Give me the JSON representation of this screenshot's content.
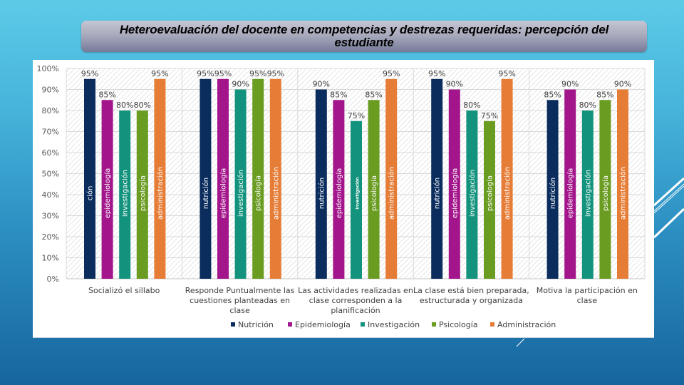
{
  "slide": {
    "title": "Heteroevaluación del docente en competencias y destrezas requeridas: percepción del estudiante"
  },
  "chart_data": {
    "type": "bar",
    "title": "Heteroevaluación del docente en competencias y destrezas requeridas: percepción del estudiante",
    "xlabel": "",
    "ylabel": "",
    "ylim": [
      0,
      100
    ],
    "y_unit": "%",
    "yticks": [
      "0%",
      "10%",
      "20%",
      "30%",
      "40%",
      "50%",
      "60%",
      "70%",
      "80%",
      "90%",
      "100%"
    ],
    "grid": true,
    "legend_position": "bottom",
    "categories": [
      [
        "Socializó el sillabo"
      ],
      [
        "Responde Puntualmente las",
        "cuestiones planteadas en",
        "clase"
      ],
      [
        "Las actividades realizadas en",
        "clase corresponden a la",
        "planificación"
      ],
      [
        "La clase está bien preparada,",
        "estructurada y organizada"
      ],
      [
        "Motiva la participación en",
        "clase"
      ]
    ],
    "series": [
      {
        "name": "Nutrición",
        "color": "#0b2d5e",
        "values": [
          95,
          95,
          90,
          95,
          85
        ],
        "bar_labels": [
          "ción",
          "nutrición",
          "nutrición",
          "nutrición",
          "nutrición"
        ]
      },
      {
        "name": "Epidemiología",
        "color": "#a3158b",
        "values": [
          85,
          95,
          85,
          90,
          90
        ],
        "bar_labels": [
          "epidemiología",
          "epidemiología",
          "epidemiología",
          "epidemiología",
          "epidemiología"
        ]
      },
      {
        "name": "Investigación",
        "color": "#13937d",
        "values": [
          80,
          90,
          75,
          80,
          80
        ],
        "bar_labels": [
          "investigación",
          "investigación",
          "investigación",
          "investigación",
          "investigación"
        ]
      },
      {
        "name": "Psicología",
        "color": "#6a9c22",
        "values": [
          80,
          95,
          85,
          75,
          85
        ],
        "bar_labels": [
          "psicología",
          "psicología",
          "psicología",
          "psicología",
          "psicología"
        ]
      },
      {
        "name": "Administración",
        "color": "#e67d37",
        "values": [
          95,
          95,
          95,
          95,
          90
        ],
        "bar_labels": [
          "administración",
          "administración",
          "administración",
          "administración",
          "administración"
        ]
      }
    ]
  }
}
